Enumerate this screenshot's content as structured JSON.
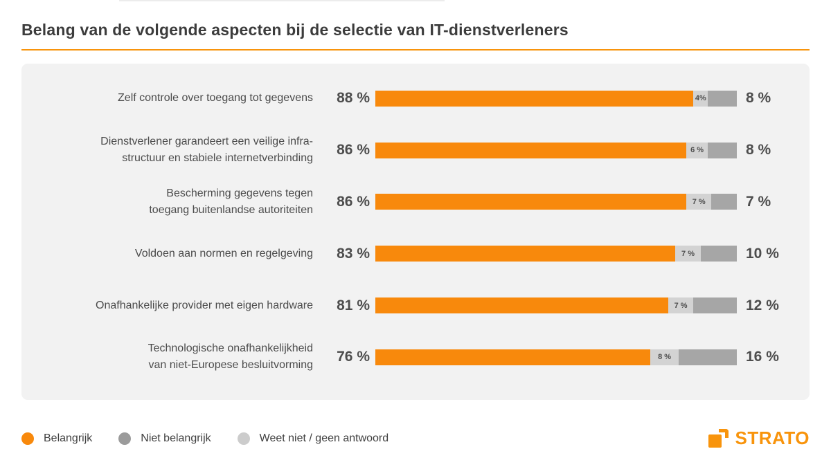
{
  "title": "Belang van de volgende aspecten bij de selectie van IT-dienstverleners",
  "colors": {
    "belangrijk": "#F8890C",
    "niet_belangrijk": "#A6A6A6",
    "weet_niet": "#D3D3D3",
    "accent_rule": "#F8940C",
    "card_bg": "#F2F2F2",
    "text": "#4B4B4B"
  },
  "chart_data": {
    "type": "bar",
    "orientation": "horizontal-stacked",
    "title": "Belang van de volgende aspecten bij de selectie van IT-dienstverleners",
    "x_range_pct": [
      0,
      100
    ],
    "grid": false,
    "legend_position": "bottom",
    "series_names": [
      "Belangrijk",
      "Weet niet / geen antwoord",
      "Niet belangrijk"
    ],
    "rows": [
      {
        "label": "Zelf controle over toegang tot gegevens",
        "belangrijk": 88,
        "weet_niet": 4,
        "niet_belangrijk": 8,
        "belangrijk_label": "88 %",
        "weet_niet_label": "4%",
        "niet_belangrijk_label": "8 %"
      },
      {
        "label": "Dienstverlener garandeert een veilige infra-\nstructuur en stabiele internetverbinding",
        "belangrijk": 86,
        "weet_niet": 6,
        "niet_belangrijk": 8,
        "belangrijk_label": "86 %",
        "weet_niet_label": "6 %",
        "niet_belangrijk_label": "8 %"
      },
      {
        "label": "Bescherming gegevens tegen\ntoegang buitenlandse autoriteiten",
        "belangrijk": 86,
        "weet_niet": 7,
        "niet_belangrijk": 7,
        "belangrijk_label": "86 %",
        "weet_niet_label": "7 %",
        "niet_belangrijk_label": "7 %"
      },
      {
        "label": "Voldoen aan normen en regelgeving",
        "belangrijk": 83,
        "weet_niet": 7,
        "niet_belangrijk": 10,
        "belangrijk_label": "83 %",
        "weet_niet_label": "7 %",
        "niet_belangrijk_label": "10 %"
      },
      {
        "label": "Onafhankelijke provider met eigen hardware",
        "belangrijk": 81,
        "weet_niet": 7,
        "niet_belangrijk": 12,
        "belangrijk_label": "81 %",
        "weet_niet_label": "7 %",
        "niet_belangrijk_label": "12 %"
      },
      {
        "label": "Technologische onafhankelijkheid\nvan niet-Europese besluitvorming",
        "belangrijk": 76,
        "weet_niet": 8,
        "niet_belangrijk": 16,
        "belangrijk_label": "76 %",
        "weet_niet_label": "8 %",
        "niet_belangrijk_label": "16 %"
      }
    ]
  },
  "legend": {
    "items": [
      {
        "label": "Belangrijk",
        "color": "#F8890C"
      },
      {
        "label": "Niet belangrijk",
        "color": "#9B9B9B"
      },
      {
        "label": "Weet niet / geen antwoord",
        "color": "#CCCCCC"
      }
    ]
  },
  "logo": {
    "text": "STRATO"
  }
}
